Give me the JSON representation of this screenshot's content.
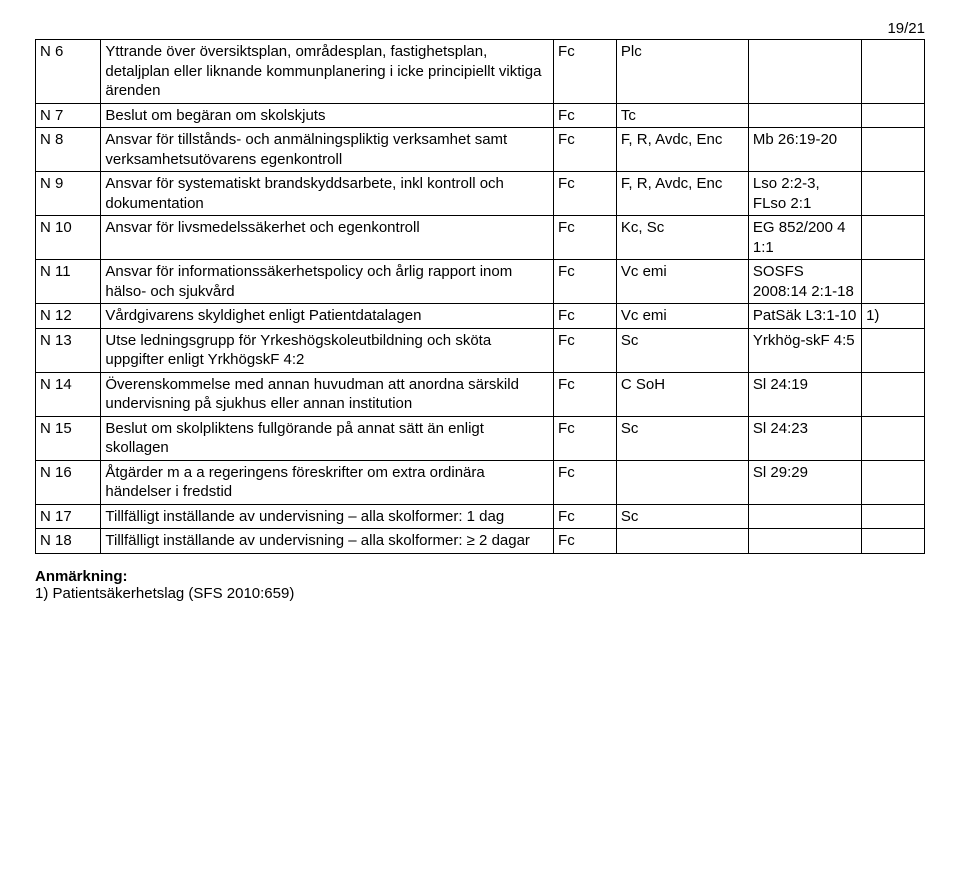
{
  "page_number": "19/21",
  "columns": {
    "count": 6
  },
  "rows": [
    {
      "id": "N 6",
      "desc": "Yttrande över översiktsplan, områdesplan, fastighetsplan, detaljplan eller liknande kommunplanering i icke principiellt viktiga ärenden",
      "c3": "Fc",
      "c4": "Plc",
      "c5": "",
      "c6": ""
    },
    {
      "id": "N 7",
      "desc": "Beslut om begäran om skolskjuts",
      "c3": "Fc",
      "c4": "Tc",
      "c5": "",
      "c6": ""
    },
    {
      "id": "N 8",
      "desc": "Ansvar för tillstånds- och anmälningspliktig verksamhet samt verksamhetsutövarens egenkontroll",
      "c3": "Fc",
      "c4": "F, R, Avdc, Enc",
      "c5": "Mb 26:19-20",
      "c6": ""
    },
    {
      "id": "N 9",
      "desc": "Ansvar för systematiskt brandskyddsarbete, inkl kontroll och dokumentation",
      "c3": "Fc",
      "c4": "F, R, Avdc, Enc",
      "c5": "Lso 2:2-3, FLso 2:1",
      "c6": ""
    },
    {
      "id": "N 10",
      "desc": "Ansvar för livsmedelssäkerhet och egenkontroll",
      "c3": "Fc",
      "c4": "Kc, Sc",
      "c5": "EG 852/200 4 1:1",
      "c6": ""
    },
    {
      "id": "N 11",
      "desc": "Ansvar för informationssäkerhetspolicy och årlig rapport inom hälso- och sjukvård",
      "c3": "Fc",
      "c4": "Vc emi",
      "c5": "SOSFS 2008:14 2:1-18",
      "c6": ""
    },
    {
      "id": "N 12",
      "desc": "Vårdgivarens skyldighet enligt Patientdatalagen",
      "c3": "Fc",
      "c4": "Vc emi",
      "c5": "PatSäk L3:1-10",
      "c6": "1)"
    },
    {
      "id": "N 13",
      "desc": "Utse ledningsgrupp för Yrkeshögskoleutbildning och sköta uppgifter enligt YrkhögskF 4:2",
      "c3": "Fc",
      "c4": "Sc",
      "c5": "Yrkhög-skF 4:5",
      "c6": ""
    },
    {
      "id": "N 14",
      "desc": "Överenskommelse med annan huvudman att anordna särskild undervisning på sjukhus eller annan institution",
      "c3": "Fc",
      "c4": "C SoH",
      "c5": "Sl 24:19",
      "c6": ""
    },
    {
      "id": "N 15",
      "desc": "Beslut om skolpliktens fullgörande på annat sätt än enligt skollagen",
      "c3": "Fc",
      "c4": "Sc",
      "c5": "Sl 24:23",
      "c6": ""
    },
    {
      "id": "N 16",
      "desc": "Åtgärder m a a regeringens föreskrifter om extra ordinära händelser i fredstid",
      "c3": "Fc",
      "c4": "",
      "c5": "Sl 29:29",
      "c6": ""
    },
    {
      "id": "N 17",
      "desc": "Tillfälligt inställande av undervisning – alla skolformer: 1 dag",
      "c3": "Fc",
      "c4": "Sc",
      "c5": "",
      "c6": ""
    },
    {
      "id": "N 18",
      "desc": "Tillfälligt inställande av undervisning – alla skolformer:  ≥ 2 dagar",
      "c3": "Fc",
      "c4": "",
      "c5": "",
      "c6": ""
    }
  ],
  "footer": {
    "heading": "Anmärkning:",
    "note": "1)  Patientsäkerhetslag (SFS 2010:659)"
  }
}
